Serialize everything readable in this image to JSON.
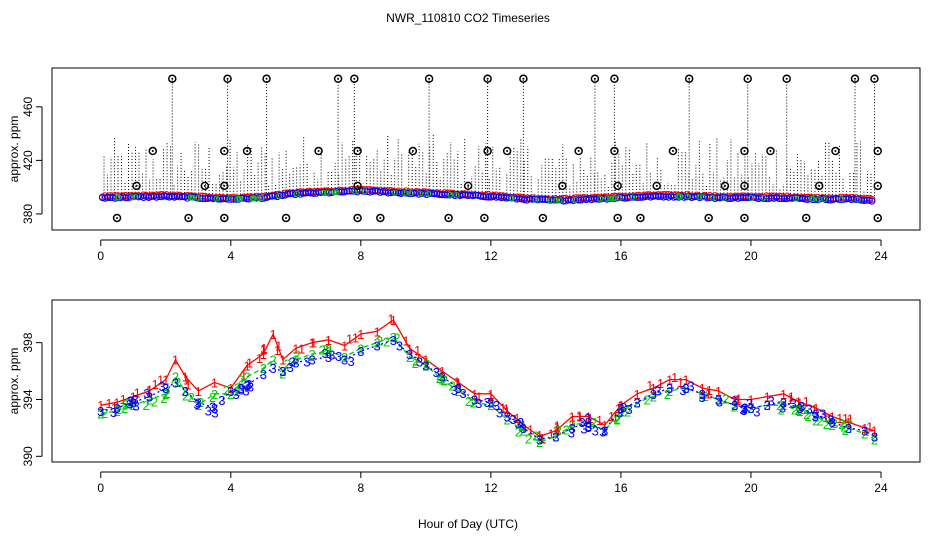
{
  "figure": {
    "title": "NWR_110810  CO2 Timeseries",
    "shared_xlabel": "Hour of Day (UTC)"
  },
  "colors": {
    "level1": "#ff0000",
    "level2": "#00cc00",
    "level3": "#0000ff",
    "markers": "#000000",
    "dotted": "#000000"
  },
  "chart_data": [
    {
      "type": "scatter",
      "title": "",
      "xlabel": "",
      "ylabel": "approx. ppm",
      "xlim": [
        -1.5,
        25.2
      ],
      "ylim": [
        368,
        489
      ],
      "xticks": [
        0,
        4,
        8,
        12,
        16,
        20,
        24
      ],
      "yticks": [
        380,
        420,
        460
      ],
      "grid": false,
      "base_series": [
        {
          "name": "red",
          "x": [
            0,
            1,
            2,
            3,
            4,
            5,
            6,
            7,
            8,
            9,
            10,
            11,
            12,
            13,
            14,
            15,
            16,
            17,
            18,
            19,
            20,
            21,
            22,
            23,
            23.8
          ],
          "y": [
            393,
            393.5,
            394,
            393,
            392,
            393,
            396,
            397,
            398,
            397,
            396,
            395,
            394,
            392,
            391,
            392,
            393,
            394,
            394,
            393,
            393,
            393,
            392,
            392,
            391
          ]
        },
        {
          "name": "blue",
          "x": [
            0,
            1,
            2,
            3,
            4,
            5,
            6,
            7,
            8,
            9,
            10,
            11,
            12,
            13,
            14,
            15,
            16,
            17,
            18,
            19,
            20,
            21,
            22,
            23,
            23.8
          ],
          "y": [
            392,
            392.5,
            393,
            392,
            391,
            392,
            395,
            396,
            397,
            396,
            395,
            394,
            393,
            391,
            390,
            391,
            392,
            393,
            393,
            392,
            392,
            392,
            391,
            391,
            390
          ]
        }
      ],
      "high_outliers": {
        "x": [
          2.2,
          3.9,
          5.1,
          7.3,
          7.8,
          10.1,
          11.9,
          13.0,
          15.2,
          15.8,
          18.1,
          19.9,
          21.1,
          23.2,
          23.8
        ],
        "y": [
          481,
          481,
          481,
          481,
          481,
          481,
          481,
          481,
          481,
          481,
          481,
          481,
          481,
          481,
          481
        ]
      },
      "mid_outliers": {
        "x": [
          1.6,
          3.8,
          4.5,
          6.7,
          7.9,
          9.6,
          11.9,
          12.5,
          14.7,
          15.8,
          17.6,
          19.8,
          20.6,
          22.6,
          23.9
        ],
        "y": [
          427,
          427,
          427,
          427,
          427,
          427,
          427,
          427,
          427,
          427,
          427,
          427,
          427,
          427,
          427
        ]
      },
      "low_outliers": {
        "x": [
          0.5,
          2.7,
          3.8,
          5.7,
          7.9,
          8.6,
          10.7,
          11.8,
          13.6,
          15.9,
          16.6,
          18.7,
          19.8,
          21.7,
          23.9
        ],
        "y": [
          377,
          377,
          377,
          377,
          377,
          377,
          377,
          377,
          377,
          377,
          377,
          377,
          377,
          377,
          377
        ]
      },
      "near_outliers": {
        "x": [
          1.1,
          3.2,
          3.8,
          7.9,
          11.3,
          14.2,
          15.9,
          17.1,
          19.2,
          19.8,
          22.1,
          23.9
        ],
        "y": [
          401,
          401,
          401,
          401,
          401,
          401,
          401,
          401,
          401,
          401,
          401,
          401
        ]
      }
    },
    {
      "type": "scatter",
      "title": "",
      "xlabel": "Hour of Day (UTC)",
      "ylabel": "approx. ppm",
      "xlim": [
        -1.5,
        25.2
      ],
      "ylim": [
        389.6,
        401.0
      ],
      "xticks": [
        0,
        4,
        8,
        12,
        16,
        20,
        24
      ],
      "yticks": [
        390,
        394,
        398
      ],
      "grid": false,
      "series": [
        {
          "name": "1",
          "x": [
            0,
            0.5,
            1,
            1.5,
            2,
            2.3,
            2.6,
            3,
            3.5,
            4,
            4.5,
            5,
            5.3,
            5.6,
            6,
            6.5,
            7,
            7.5,
            8,
            8.5,
            9,
            9.5,
            10,
            10.5,
            11,
            11.5,
            12,
            12.5,
            13,
            13.5,
            14,
            14.5,
            15,
            15.5,
            16,
            16.5,
            17,
            17.5,
            18,
            18.5,
            19,
            19.5,
            20,
            20.5,
            21,
            21.5,
            22,
            22.5,
            23,
            23.5,
            23.8
          ],
          "y": [
            393.6,
            393.8,
            394.2,
            394.6,
            395.4,
            396.8,
            395.6,
            394.6,
            395.2,
            394.8,
            396.4,
            397.2,
            398.6,
            396.8,
            397.6,
            398.0,
            398.2,
            397.8,
            398.6,
            398.8,
            399.6,
            397.6,
            396.8,
            396.0,
            395.2,
            394.4,
            394.4,
            393.2,
            392.2,
            391.4,
            391.8,
            392.8,
            392.8,
            392.2,
            393.6,
            394.4,
            394.8,
            395.4,
            395.4,
            394.8,
            394.6,
            394.0,
            394.0,
            394.2,
            394.4,
            393.8,
            393.4,
            392.8,
            392.4,
            392.0,
            391.8
          ]
        },
        {
          "name": "2",
          "x": [
            0,
            0.5,
            1,
            1.5,
            2,
            2.3,
            2.6,
            3,
            3.5,
            4,
            4.5,
            5,
            5.3,
            5.6,
            6,
            6.5,
            7,
            7.5,
            8,
            8.5,
            9,
            9.5,
            10,
            10.5,
            11,
            11.5,
            12,
            12.5,
            13,
            13.5,
            14,
            14.5,
            15,
            15.5,
            16,
            16.5,
            17,
            17.5,
            18,
            18.5,
            19,
            19.5,
            20,
            20.5,
            21,
            21.5,
            22,
            22.5,
            23,
            23.5,
            23.8
          ],
          "y": [
            393.0,
            393.2,
            393.6,
            394.0,
            394.4,
            395.6,
            394.6,
            393.6,
            394.4,
            394.4,
            395.6,
            396.2,
            396.8,
            396.0,
            396.8,
            397.2,
            397.4,
            397.0,
            397.6,
            398.0,
            398.4,
            397.0,
            396.4,
            395.4,
            394.6,
            393.8,
            393.6,
            392.6,
            391.8,
            391.0,
            391.4,
            392.2,
            392.4,
            391.8,
            393.2,
            393.8,
            394.2,
            394.6,
            394.8,
            394.4,
            394.0,
            393.6,
            393.4,
            393.6,
            393.6,
            393.2,
            392.8,
            392.2,
            392.0,
            391.6,
            391.2
          ]
        },
        {
          "name": "3",
          "x": [
            0,
            0.5,
            1,
            1.5,
            2,
            2.3,
            2.6,
            3,
            3.5,
            4,
            4.5,
            5,
            5.3,
            5.6,
            6,
            6.5,
            7,
            7.5,
            8,
            8.5,
            9,
            9.5,
            10,
            10.5,
            11,
            11.5,
            12,
            12.5,
            13,
            13.5,
            14,
            14.5,
            15,
            15.5,
            16,
            16.5,
            17,
            17.5,
            18,
            18.5,
            19,
            19.5,
            20,
            20.5,
            21,
            21.5,
            22,
            22.5,
            23,
            23.5,
            23.8
          ],
          "y": [
            393.2,
            393.4,
            393.8,
            394.2,
            394.8,
            395.2,
            394.6,
            393.8,
            393.4,
            394.6,
            395.0,
            395.8,
            396.2,
            396.0,
            396.6,
            396.8,
            397.0,
            396.8,
            397.4,
            397.8,
            398.2,
            397.2,
            396.4,
            395.6,
            394.8,
            394.0,
            393.8,
            392.8,
            392.0,
            391.2,
            391.4,
            392.0,
            392.4,
            391.8,
            393.4,
            393.8,
            394.4,
            394.8,
            394.8,
            394.4,
            394.0,
            393.6,
            393.4,
            393.6,
            393.8,
            393.4,
            393.0,
            392.4,
            392.0,
            391.8,
            391.4
          ]
        }
      ]
    }
  ]
}
